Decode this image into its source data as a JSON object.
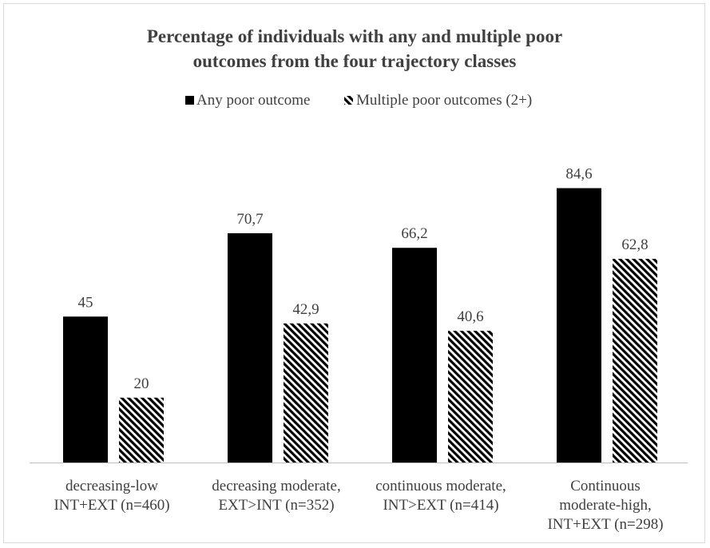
{
  "chart_data": {
    "type": "bar",
    "title_lines": [
      "Percentage of individuals with any and multiple poor",
      "outcomes from the four trajectory classes"
    ],
    "categories": [
      [
        "decreasing-low",
        "INT+EXT (n=460)"
      ],
      [
        "decreasing moderate,",
        "EXT>INT (n=352)"
      ],
      [
        "continuous moderate,",
        "INT>EXT (n=414)"
      ],
      [
        "Continuous",
        "moderate-high,",
        "INT+EXT (n=298)"
      ]
    ],
    "series": [
      {
        "name": "Any poor outcome",
        "values": [
          45,
          70.7,
          66.2,
          84.6
        ],
        "labels": [
          "45",
          "70,7",
          "66,2",
          "84,6"
        ],
        "fill": "solid",
        "color": "#000000"
      },
      {
        "name": "Multiple poor outcomes (2+)",
        "values": [
          20,
          42.9,
          40.6,
          62.8
        ],
        "labels": [
          "20",
          "42,9",
          "40,6",
          "62,8"
        ],
        "fill": "hatched",
        "color": "#000000"
      }
    ],
    "ylim": [
      0,
      100
    ],
    "grid": false,
    "legend_position": "top"
  }
}
